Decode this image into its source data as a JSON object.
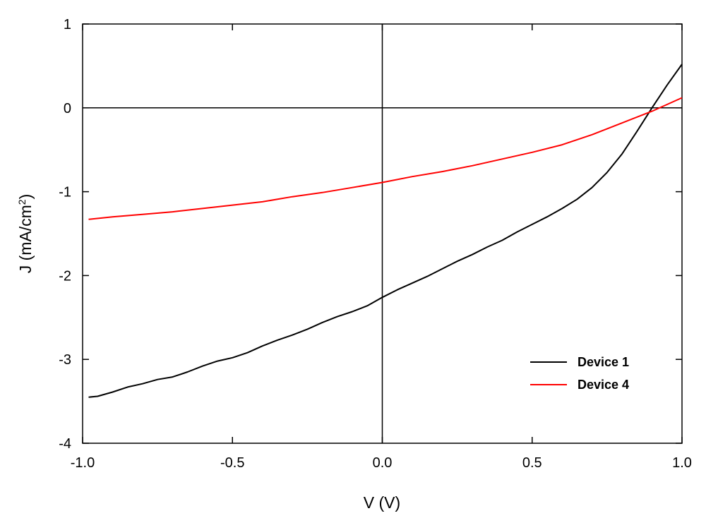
{
  "chart_data": {
    "type": "line",
    "title": "",
    "xlabel": "V (V)",
    "ylabel_main": "J (mA/cm",
    "ylabel_sup": "2",
    "ylabel_close": ")",
    "xlim": [
      -1.0,
      1.0
    ],
    "ylim": [
      -4,
      1
    ],
    "xticks": [
      -1.0,
      -0.5,
      0.0,
      0.5,
      1.0
    ],
    "xtick_labels": [
      "-1.0",
      "-0.5",
      "0.0",
      "0.5",
      "1.0"
    ],
    "yticks": [
      -4,
      -3,
      -2,
      -1,
      0,
      1
    ],
    "ytick_labels": [
      "-4",
      "-3",
      "-2",
      "-1",
      "0",
      "1"
    ],
    "grid": false,
    "zero_lines": true,
    "legend_position": "bottom-right",
    "series": [
      {
        "name": "Device 1",
        "color": "#000000",
        "x": [
          -0.98,
          -0.95,
          -0.9,
          -0.85,
          -0.8,
          -0.75,
          -0.7,
          -0.65,
          -0.6,
          -0.55,
          -0.5,
          -0.45,
          -0.4,
          -0.35,
          -0.3,
          -0.25,
          -0.2,
          -0.15,
          -0.1,
          -0.05,
          0.0,
          0.05,
          0.1,
          0.15,
          0.2,
          0.25,
          0.3,
          0.35,
          0.4,
          0.45,
          0.5,
          0.55,
          0.6,
          0.65,
          0.7,
          0.75,
          0.8,
          0.85,
          0.9,
          0.95,
          1.0
        ],
        "y": [
          -3.45,
          -3.44,
          -3.39,
          -3.33,
          -3.29,
          -3.24,
          -3.21,
          -3.15,
          -3.08,
          -3.02,
          -2.98,
          -2.92,
          -2.84,
          -2.77,
          -2.71,
          -2.64,
          -2.56,
          -2.49,
          -2.43,
          -2.36,
          -2.26,
          -2.17,
          -2.09,
          -2.01,
          -1.92,
          -1.83,
          -1.75,
          -1.66,
          -1.58,
          -1.48,
          -1.39,
          -1.3,
          -1.2,
          -1.09,
          -0.95,
          -0.77,
          -0.55,
          -0.28,
          0.0,
          0.27,
          0.52
        ]
      },
      {
        "name": "Device 4",
        "color": "#ff0000",
        "x": [
          -0.98,
          -0.9,
          -0.8,
          -0.7,
          -0.6,
          -0.5,
          -0.4,
          -0.3,
          -0.2,
          -0.1,
          0.0,
          0.1,
          0.2,
          0.3,
          0.4,
          0.5,
          0.6,
          0.7,
          0.8,
          0.9,
          1.0
        ],
        "y": [
          -1.33,
          -1.3,
          -1.27,
          -1.24,
          -1.2,
          -1.16,
          -1.12,
          -1.06,
          -1.01,
          -0.95,
          -0.89,
          -0.82,
          -0.76,
          -0.69,
          -0.61,
          -0.53,
          -0.44,
          -0.32,
          -0.18,
          -0.04,
          0.12
        ]
      }
    ]
  }
}
